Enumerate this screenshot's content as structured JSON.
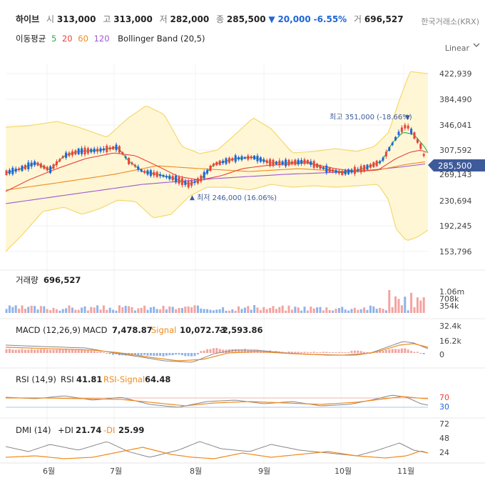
{
  "header": {
    "name": "하이브",
    "open_label": "시",
    "open": "313,000",
    "high_label": "고",
    "high": "313,000",
    "low_label": "저",
    "low": "282,000",
    "close_label": "종",
    "close": "285,500",
    "change_arrow": "▼",
    "change": "20,000",
    "change_pct": "-6.55%",
    "volume_label": "거",
    "volume": "696,527",
    "exchange": "한국거래소(KRX)"
  },
  "indicators": {
    "ma_label": "이동평균",
    "ma5": "5",
    "ma20": "20",
    "ma60": "60",
    "ma120": "120",
    "bb": "Bollinger Band (20,5)",
    "scale": "Linear"
  },
  "price_chart": {
    "y_ticks": [
      "422,939",
      "384,490",
      "346,041",
      "307,592",
      "269,143",
      "230,694",
      "192,245",
      "153,796"
    ],
    "current_price": "285,500",
    "high_note": "최고 351,000 (-18.66%)",
    "low_note": "최저 246,000 (16.06%)"
  },
  "volume_panel": {
    "label": "거래량",
    "value": "696,527",
    "y_ticks": [
      "1.06m",
      "708k",
      "354k"
    ]
  },
  "macd_panel": {
    "label": "MACD (12,26,9)",
    "macd_label": "MACD",
    "macd_value": "7,478.87",
    "signal_label": "Signal",
    "signal_value": "10,072.73",
    "hist_value": "-2,593.86",
    "y_ticks": [
      "32.4k",
      "16.2k",
      "0"
    ]
  },
  "rsi_panel": {
    "label": "RSI (14,9)",
    "rsi_label": "RSI",
    "rsi_value": "41.81",
    "signal_label": "RSI-Signal",
    "signal_value": "64.48",
    "y_ticks": [
      "70",
      "30"
    ]
  },
  "dmi_panel": {
    "label": "DMI (14)",
    "pdi_label": "+DI",
    "pdi_value": "21.74",
    "mdi_label": "-DI",
    "mdi_value": "25.99",
    "y_ticks": [
      "72",
      "48",
      "24"
    ]
  },
  "x_axis": [
    "6월",
    "7월",
    "8월",
    "9월",
    "10월",
    "11월"
  ],
  "colors": {
    "up": "#e8453c",
    "down": "#1e66d8",
    "ma5": "#2fa84f",
    "ma20": "#e8453c",
    "ma60": "#ef8a1d",
    "ma120": "#9b59d0",
    "band": "#f5d86a",
    "price_tag": "#3d5a99"
  }
}
